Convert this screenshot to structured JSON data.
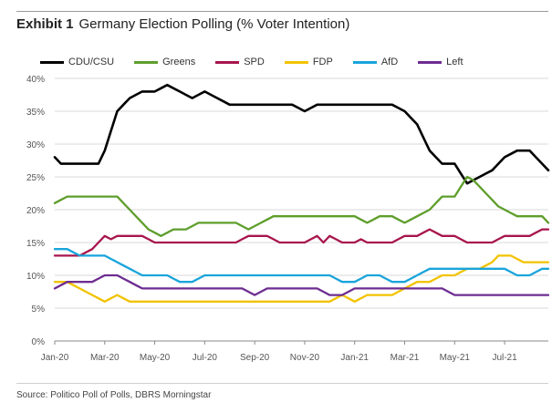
{
  "header": {
    "exhibit_label": "Exhibit 1",
    "title": "Germany Election Polling (% Voter Intention)"
  },
  "footer": {
    "source": "Source: Politico Poll of Polls, DBRS Morningstar"
  },
  "chart_data": {
    "type": "line",
    "title": "Germany Election Polling (% Voter Intention)",
    "xlabel": "",
    "ylabel": "",
    "ylim": [
      0,
      40
    ],
    "yticks": [
      "0%",
      "5%",
      "10%",
      "15%",
      "20%",
      "25%",
      "30%",
      "35%",
      "40%"
    ],
    "ytick_values": [
      0,
      5,
      10,
      15,
      20,
      25,
      30,
      35,
      40
    ],
    "xticks": [
      "Jan-20",
      "Mar-20",
      "May-20",
      "Jul-20",
      "Sep-20",
      "Nov-20",
      "Jan-21",
      "Mar-21",
      "May-21",
      "Jul-21"
    ],
    "xtick_months": [
      0,
      2,
      4,
      6,
      8,
      10,
      12,
      14,
      16,
      18
    ],
    "xlim_months": [
      0,
      19.75
    ],
    "legend_position": "top",
    "grid": "horizontal",
    "x": [
      0,
      0.25,
      0.5,
      0.75,
      1,
      1.25,
      1.5,
      1.75,
      2,
      2.25,
      2.5,
      2.75,
      3,
      3.25,
      3.5,
      3.75,
      4,
      4.25,
      4.5,
      4.75,
      5,
      5.25,
      5.5,
      5.75,
      6,
      6.25,
      6.5,
      6.75,
      7,
      7.25,
      7.5,
      7.75,
      8,
      8.25,
      8.5,
      8.75,
      9,
      9.25,
      9.5,
      9.75,
      10,
      10.25,
      10.5,
      10.75,
      11,
      11.25,
      11.5,
      11.75,
      12,
      12.25,
      12.5,
      12.75,
      13,
      13.25,
      13.5,
      13.75,
      14,
      14.25,
      14.5,
      14.75,
      15,
      15.25,
      15.5,
      15.75,
      16,
      16.25,
      16.5,
      16.75,
      17,
      17.25,
      17.5,
      17.75,
      18,
      18.25,
      18.5,
      18.75,
      19,
      19.25,
      19.5,
      19.75
    ],
    "series": [
      {
        "name": "CDU/CSU",
        "color": "#000000",
        "values": [
          28,
          27,
          27,
          27,
          27,
          27,
          27,
          27,
          29,
          32,
          35,
          36,
          37,
          37.5,
          38,
          38,
          38,
          38.5,
          39,
          38.5,
          38,
          37.5,
          37,
          37.5,
          38,
          37.5,
          37,
          36.5,
          36,
          36,
          36,
          36,
          36,
          36,
          36,
          36,
          36,
          36,
          36,
          35.5,
          35,
          35.5,
          36,
          36,
          36,
          36,
          36,
          36,
          36,
          36,
          36,
          36,
          36,
          36,
          36,
          35.5,
          35,
          34,
          33,
          31,
          29,
          28,
          27,
          27,
          27,
          25.5,
          24,
          24.5,
          25,
          25.5,
          26,
          27,
          28,
          28.5,
          29,
          29,
          29,
          28,
          27,
          26
        ]
      },
      {
        "name": "Greens",
        "color": "#5e9e2c",
        "values": [
          21,
          21.5,
          22,
          22,
          22,
          22,
          22,
          22,
          22,
          22,
          22,
          21,
          20,
          19,
          18,
          17,
          16.5,
          16,
          16.5,
          17,
          17,
          17,
          17.5,
          18,
          18,
          18,
          18,
          18,
          18,
          18,
          17.5,
          17,
          17.5,
          18,
          18.5,
          19,
          19,
          19,
          19,
          19,
          19,
          19,
          19,
          19,
          19,
          19,
          19,
          19,
          19,
          18.5,
          18,
          18.5,
          19,
          19,
          19,
          18.5,
          18,
          18.5,
          19,
          19.5,
          20,
          21,
          22,
          22,
          22,
          23.5,
          25,
          24.5,
          23.5,
          22.5,
          21.5,
          20.5,
          20,
          19.5,
          19,
          19,
          19,
          19,
          19,
          18
        ]
      },
      {
        "name": "SPD",
        "color": "#a8164e",
        "values": [
          13,
          13,
          13,
          13,
          13,
          13.5,
          14,
          15,
          16,
          15.5,
          16,
          16,
          16,
          16,
          16,
          15.5,
          15,
          15,
          15,
          15,
          15,
          15,
          15,
          15,
          15,
          15,
          15,
          15,
          15,
          15,
          15.5,
          16,
          16,
          16,
          16,
          15.5,
          15,
          15,
          15,
          15,
          15,
          15.5,
          16,
          15,
          16,
          15.5,
          15,
          15,
          15,
          15.5,
          15,
          15,
          15,
          15,
          15,
          15.5,
          16,
          16,
          16,
          16.5,
          17,
          16.5,
          16,
          16,
          16,
          15.5,
          15,
          15,
          15,
          15,
          15,
          15.5,
          16,
          16,
          16,
          16,
          16,
          16.5,
          17,
          17
        ]
      },
      {
        "name": "FDP",
        "color": "#f2c300",
        "values": [
          9,
          9,
          9,
          8.5,
          8,
          7.5,
          7,
          6.5,
          6,
          6.5,
          7,
          6.5,
          6,
          6,
          6,
          6,
          6,
          6,
          6,
          6,
          6,
          6,
          6,
          6,
          6,
          6,
          6,
          6,
          6,
          6,
          6,
          6,
          6,
          6,
          6,
          6,
          6,
          6,
          6,
          6,
          6,
          6,
          6,
          6,
          6,
          6.5,
          7,
          6.5,
          6,
          6.5,
          7,
          7,
          7,
          7,
          7,
          7.5,
          8,
          8.5,
          9,
          9,
          9,
          9.5,
          10,
          10,
          10,
          10.5,
          11,
          11,
          11,
          11.5,
          12,
          13,
          13,
          13,
          12.5,
          12,
          12,
          12,
          12,
          12
        ]
      },
      {
        "name": "AfD",
        "color": "#19a4db",
        "values": [
          14,
          14,
          14,
          13.5,
          13,
          13,
          13,
          13,
          13,
          12.5,
          12,
          11.5,
          11,
          10.5,
          10,
          10,
          10,
          10,
          10,
          9.5,
          9,
          9,
          9,
          9.5,
          10,
          10,
          10,
          10,
          10,
          10,
          10,
          10,
          10,
          10,
          10,
          10,
          10,
          10,
          10,
          10,
          10,
          10,
          10,
          10,
          10,
          9.5,
          9,
          9,
          9,
          9.5,
          10,
          10,
          10,
          9.5,
          9,
          9,
          9,
          9.5,
          10,
          10.5,
          11,
          11,
          11,
          11,
          11,
          11,
          11,
          11,
          11,
          11,
          11,
          11,
          11,
          10.5,
          10,
          10,
          10,
          10.5,
          11,
          11
        ]
      },
      {
        "name": "Left",
        "color": "#6d2c91",
        "values": [
          8,
          8.5,
          9,
          9,
          9,
          9,
          9,
          9.5,
          10,
          10,
          10,
          9.5,
          9,
          8.5,
          8,
          8,
          8,
          8,
          8,
          8,
          8,
          8,
          8,
          8,
          8,
          8,
          8,
          8,
          8,
          8,
          8,
          7.5,
          7,
          7.5,
          8,
          8,
          8,
          8,
          8,
          8,
          8,
          8,
          8,
          7.5,
          7,
          7,
          7,
          7.5,
          8,
          8,
          8,
          8,
          8,
          8,
          8,
          8,
          8,
          8,
          8,
          8,
          8,
          8,
          8,
          7.5,
          7,
          7,
          7,
          7,
          7,
          7,
          7,
          7,
          7,
          7,
          7,
          7,
          7,
          7,
          7,
          7
        ]
      }
    ]
  }
}
